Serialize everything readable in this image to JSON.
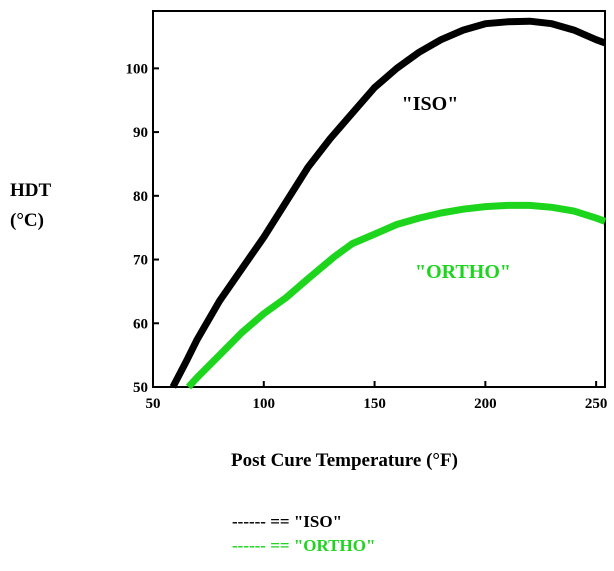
{
  "chart_data": {
    "type": "line",
    "title": "",
    "xlabel": "Post Cure Temperature (°F)",
    "ylabel_line1": "HDT",
    "ylabel_line2": "(°C)",
    "xlim": [
      50,
      254
    ],
    "ylim": [
      50,
      109
    ],
    "x_ticks": [
      50,
      100,
      150,
      200,
      250
    ],
    "y_ticks": [
      50,
      60,
      70,
      80,
      90,
      100
    ],
    "grid": false,
    "colors": {
      "ISO": "#000000",
      "ORTHO": "#1ed51e"
    },
    "series": [
      {
        "name": "\"ISO\"",
        "key": "ISO",
        "x": [
          59,
          65,
          70,
          80,
          90,
          100,
          110,
          120,
          130,
          140,
          150,
          160,
          170,
          180,
          190,
          200,
          210,
          220,
          230,
          240,
          250,
          254
        ],
        "y": [
          50,
          54,
          57.5,
          63.5,
          68.5,
          73.5,
          79,
          84.5,
          89,
          93,
          97,
          100,
          102.5,
          104.5,
          106,
          107,
          107.3,
          107.4,
          107,
          106,
          104.5,
          104
        ]
      },
      {
        "name": "\"ORTHO\"",
        "key": "ORTHO",
        "x": [
          66,
          70,
          80,
          90,
          100,
          110,
          120,
          132,
          140,
          150,
          160,
          170,
          180,
          190,
          200,
          210,
          220,
          230,
          240,
          250,
          254
        ],
        "y": [
          50,
          51.5,
          55,
          58.5,
          61.5,
          64,
          67,
          70.5,
          72.5,
          74,
          75.5,
          76.5,
          77.3,
          77.9,
          78.3,
          78.5,
          78.5,
          78.2,
          77.6,
          76.5,
          76
        ]
      }
    ],
    "annotations": [
      {
        "text": "\"ISO\"",
        "series": "ISO"
      },
      {
        "text": "\"ORTHO\"",
        "series": "ORTHO"
      }
    ],
    "legend": [
      {
        "line": "------",
        "text": "== \"ISO\"",
        "series": "ISO"
      },
      {
        "line": "------",
        "text": "== \"ORTHO\"",
        "series": "ORTHO"
      }
    ],
    "legend_position": "bottom-center"
  }
}
